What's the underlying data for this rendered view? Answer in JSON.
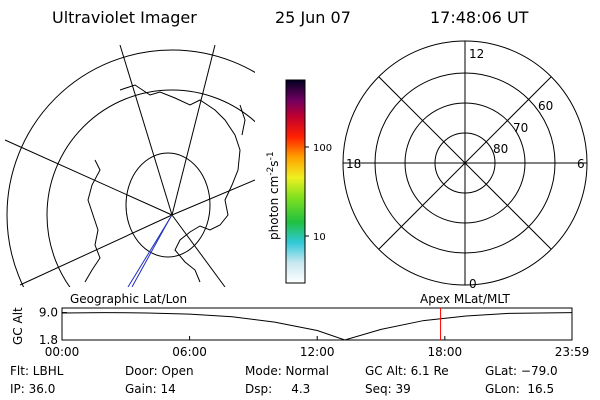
{
  "header": {
    "title": "Ultraviolet Imager",
    "date": "25 Jun 07",
    "time": "17:48:06 UT"
  },
  "colorbar": {
    "label": [
      "photon cm",
      "-2",
      "s",
      "-1"
    ],
    "ticks": [
      "100",
      "10"
    ]
  },
  "polar": {
    "mlt_labels": [
      "12",
      "18",
      "6",
      "0"
    ],
    "lat_labels": [
      "60",
      "70",
      "80"
    ]
  },
  "chart_data": {
    "type": "line",
    "left_title": "Geographic Lat/Lon",
    "right_title": "Apex MLat/MLT",
    "ylabel": "GC Alt",
    "x": [
      0,
      2,
      4,
      6,
      8,
      10,
      12,
      13.3,
      15,
      17,
      19,
      21,
      23.98
    ],
    "values": [
      8.9,
      9.0,
      8.9,
      8.6,
      7.9,
      6.5,
      4.3,
      1.8,
      4.6,
      6.9,
      8.1,
      8.8,
      9.0
    ],
    "color": "#000000",
    "marker": {
      "x": 17.8,
      "color": "#ff0000"
    },
    "xlim": [
      0,
      23.98
    ],
    "ylim": [
      1.8,
      10.2
    ],
    "xticks": [
      {
        "value": 0,
        "label": "00:00"
      },
      {
        "value": 6,
        "label": "06:00"
      },
      {
        "value": 12,
        "label": "12:00"
      },
      {
        "value": 18,
        "label": "18:00"
      },
      {
        "value": 23.98,
        "label": "23:59"
      }
    ],
    "yticks": [
      {
        "value": 9.0,
        "label": "9.0"
      },
      {
        "value": 1.8,
        "label": "1.8"
      }
    ]
  },
  "footer": {
    "rows": [
      [
        "Flt: LBHL",
        "Door: Open",
        "Mode: Normal",
        "GC Alt: 6.1 Re",
        "GLat: −79.0"
      ],
      [
        "IP: 36.0",
        "Gain: 14",
        "Dsp:     4.3",
        "Seq: 39",
        "GLon:  16.5"
      ]
    ]
  }
}
